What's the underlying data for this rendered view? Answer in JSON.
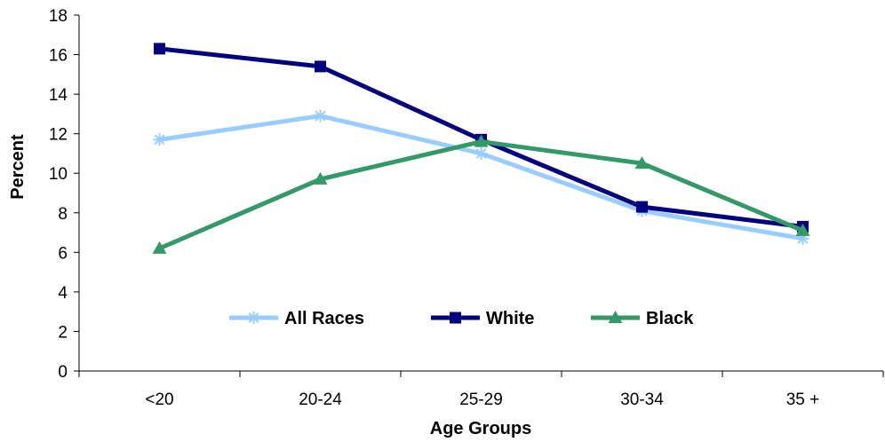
{
  "chart_data": {
    "type": "line",
    "title": "",
    "xlabel": "Age Groups",
    "ylabel": "Percent",
    "categories": [
      "<20",
      "20-24",
      "25-29",
      "30-34",
      "35 +"
    ],
    "ylim": [
      0,
      18
    ],
    "yticks": [
      0,
      2,
      4,
      6,
      8,
      10,
      12,
      14,
      16,
      18
    ],
    "grid": false,
    "legend_position": "inside-bottom-center",
    "series": [
      {
        "name": "All Races",
        "values": [
          11.7,
          12.9,
          11.0,
          8.1,
          6.7
        ],
        "color": "#99CCFF",
        "marker": "asterisk"
      },
      {
        "name": "White",
        "values": [
          16.3,
          15.4,
          11.7,
          8.3,
          7.3
        ],
        "color": "#000080",
        "marker": "square"
      },
      {
        "name": "Black",
        "values": [
          6.2,
          9.7,
          11.6,
          10.5,
          7.1
        ],
        "color": "#339966",
        "marker": "triangle"
      }
    ]
  }
}
